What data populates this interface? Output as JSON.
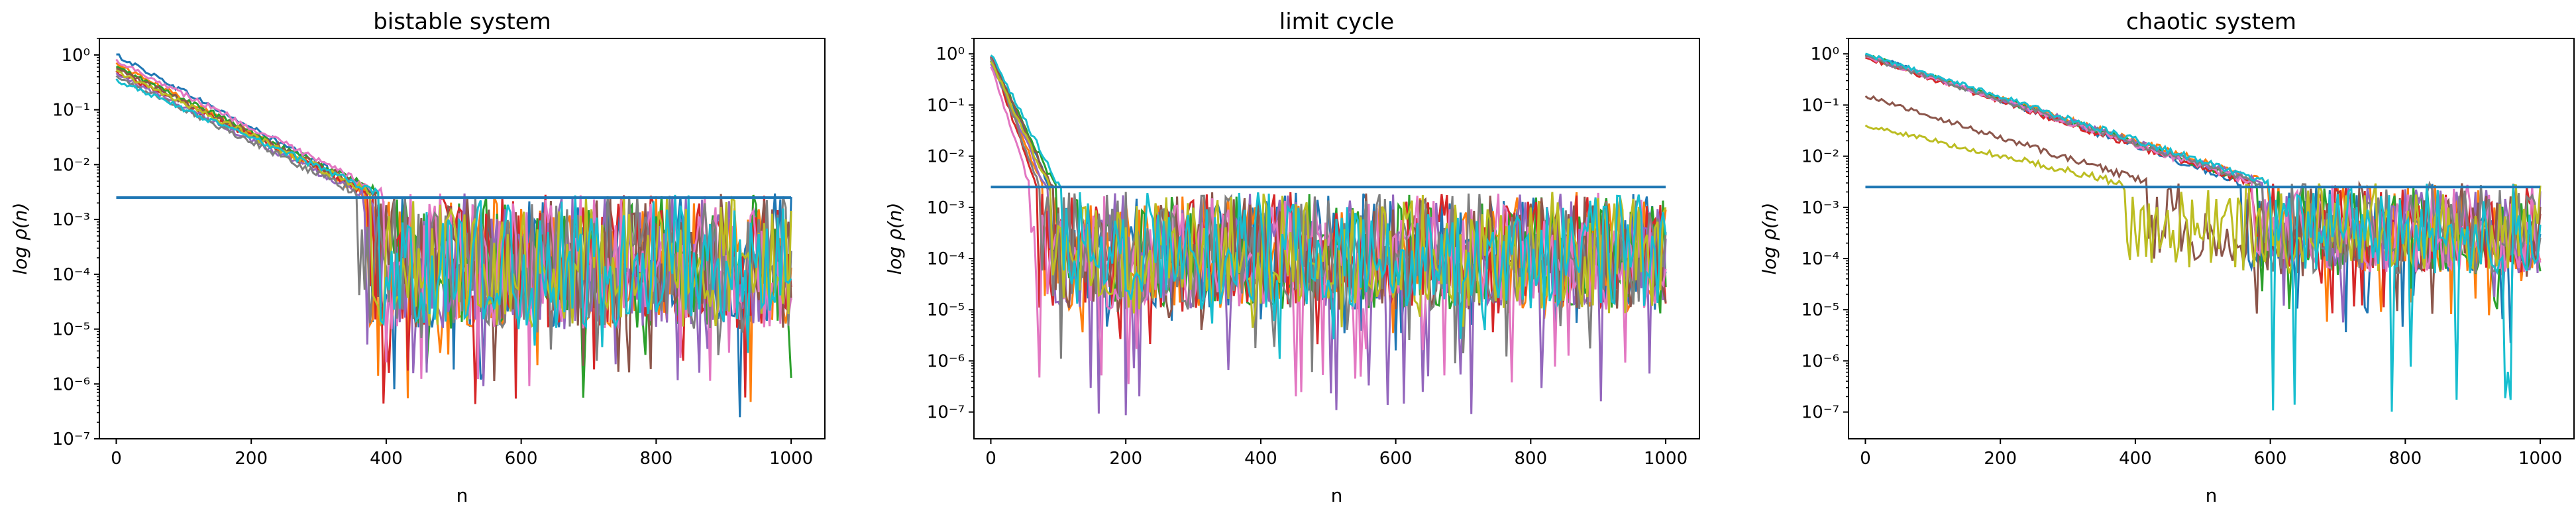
{
  "chart_data": [
    {
      "type": "line",
      "title": "bistable system",
      "xlabel": "n",
      "ylabel": "log ρ(n)",
      "xlim": [
        -25,
        1050
      ],
      "ylim": [
        1e-07,
        2.0
      ],
      "yscale": "log",
      "xticks": [
        "0",
        "200",
        "400",
        "600",
        "800",
        "1000"
      ],
      "yticks": [
        "10⁻⁷",
        "10⁻⁶",
        "10⁻⁵",
        "10⁻⁴",
        "10⁻³",
        "10⁻²",
        "10⁻¹",
        "10⁰"
      ],
      "threshold": {
        "y": 0.0025,
        "x": [
          0,
          1000
        ],
        "color": "#1f77b4"
      },
      "series_colors": [
        "#1f77b4",
        "#ff7f0e",
        "#2ca02c",
        "#d62728",
        "#9467bd",
        "#8c564b",
        "#e377c2",
        "#7f7f7f",
        "#bcbd22",
        "#17becf"
      ],
      "series_start": [
        1.0,
        0.7,
        0.6,
        0.5,
        0.45,
        0.55,
        0.8,
        0.4,
        0.5,
        0.35
      ],
      "decay_end_x": [
        380,
        370,
        390,
        375,
        365,
        385,
        395,
        360,
        380,
        390
      ],
      "noise_floor": {
        "y_range": [
          1e-05,
          0.003
        ],
        "min_dips": [
          2e-07,
          4e-07,
          5e-07,
          3e-07,
          8e-07,
          4e-07,
          5e-07,
          2e-06,
          6e-06,
          3e-06
        ]
      }
    },
    {
      "type": "line",
      "title": "limit cycle",
      "xlabel": "n",
      "ylabel": "log ρ(n)",
      "xlim": [
        -25,
        1050
      ],
      "ylim": [
        3e-08,
        2.0
      ],
      "yscale": "log",
      "xticks": [
        "0",
        "200",
        "400",
        "600",
        "800",
        "1000"
      ],
      "yticks": [
        "10⁻⁷",
        "10⁻⁶",
        "10⁻⁵",
        "10⁻⁴",
        "10⁻³",
        "10⁻²",
        "10⁻¹",
        "10⁰"
      ],
      "threshold": {
        "y": 0.0025,
        "x": [
          0,
          1000
        ],
        "color": "#1f77b4"
      },
      "series_colors": [
        "#1f77b4",
        "#ff7f0e",
        "#2ca02c",
        "#d62728",
        "#9467bd",
        "#8c564b",
        "#e377c2",
        "#7f7f7f",
        "#bcbd22",
        "#17becf"
      ],
      "series_start": [
        1.0,
        0.9,
        0.8,
        0.95,
        0.7,
        0.85,
        0.6,
        0.9,
        0.75,
        1.0
      ],
      "decay_end_x": [
        90,
        80,
        100,
        70,
        85,
        95,
        60,
        75,
        90,
        105
      ],
      "noise_floor": {
        "y_range": [
          1e-05,
          0.002
        ],
        "min_dips": [
          1e-06,
          3e-06,
          5e-06,
          2e-06,
          8e-08,
          4e-06,
          2e-07,
          6e-07,
          2e-06,
          9e-07
        ]
      }
    },
    {
      "type": "line",
      "title": "chaotic system",
      "xlabel": "n",
      "ylabel": "log ρ(n)",
      "xlim": [
        -25,
        1050
      ],
      "ylim": [
        3e-08,
        2.0
      ],
      "yscale": "log",
      "xticks": [
        "0",
        "200",
        "400",
        "600",
        "800",
        "1000"
      ],
      "yticks": [
        "10⁻⁷",
        "10⁻⁶",
        "10⁻⁵",
        "10⁻⁴",
        "10⁻³",
        "10⁻²",
        "10⁻¹",
        "10⁰"
      ],
      "threshold": {
        "y": 0.0025,
        "x": [
          0,
          1000
        ],
        "color": "#1f77b4"
      },
      "series_colors": [
        "#1f77b4",
        "#ff7f0e",
        "#2ca02c",
        "#d62728",
        "#9467bd",
        "#8c564b",
        "#e377c2",
        "#7f7f7f",
        "#bcbd22",
        "#17becf"
      ],
      "series_start": [
        1.0,
        0.9,
        0.95,
        0.85,
        0.9,
        0.15,
        0.9,
        0.88,
        0.04,
        1.0
      ],
      "decay_end_x": [
        560,
        600,
        580,
        570,
        590,
        420,
        575,
        585,
        380,
        600
      ],
      "noise_floor": {
        "y_range": [
          5e-05,
          0.003
        ],
        "min_dips": [
          2e-06,
          5e-06,
          1e-05,
          8e-06,
          3e-06,
          6e-06,
          5e-05,
          4e-06,
          0.0001,
          8e-08
        ]
      }
    }
  ]
}
